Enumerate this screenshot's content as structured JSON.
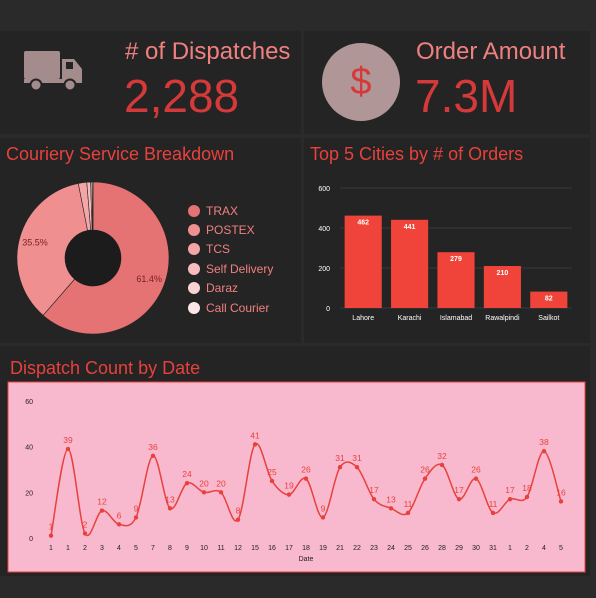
{
  "kpis": {
    "dispatches": {
      "title": "# of Dispatches",
      "value": "2,288",
      "icon": "truck-icon"
    },
    "amount": {
      "title": "Order Amount",
      "value": "7.3M",
      "icon": "dollar-icon",
      "symbol": "$"
    }
  },
  "colors": {
    "accent": "#d6393a",
    "title": "#e8413c",
    "panel": "#242424",
    "background": "#2a2a2a",
    "bar": "#f0443a",
    "line": "#e8413c",
    "line_panel": "#f8b9cf"
  },
  "chart_data": [
    {
      "type": "pie",
      "title": "Couriery Service Breakdown",
      "donut": true,
      "labels": [
        "TRAX",
        "POSTEX",
        "TCS",
        "Self Delivery",
        "Daraz",
        "Call Courier"
      ],
      "values": [
        61.4,
        35.5,
        1.8,
        0.8,
        0.3,
        0.2
      ],
      "colors": [
        "#e57373",
        "#ef8f8f",
        "#f4a6a6",
        "#f7bcbc",
        "#fad2d2",
        "#fde6e6"
      ],
      "slice_labels": [
        "61.4%",
        "35.5%",
        "",
        "",
        "",
        ""
      ],
      "legend_position": "right"
    },
    {
      "type": "bar",
      "title": "Top 5 Cities by # of Orders",
      "categories": [
        "Lahore",
        "Karachi",
        "Islamabad",
        "Rawalpindi",
        "Sailkot"
      ],
      "values": [
        462,
        441,
        279,
        210,
        82
      ],
      "ylim": [
        0,
        600
      ],
      "yticks": [
        "0",
        "200",
        "400",
        "600"
      ],
      "grid": true
    },
    {
      "type": "line",
      "title": "Dispatch Count by Date",
      "xlabel": "Date",
      "ylabel": "",
      "x": [
        "1",
        "1",
        "2",
        "3",
        "4",
        "5",
        "7",
        "8",
        "9",
        "10",
        "11",
        "12",
        "15",
        "16",
        "17",
        "18",
        "19",
        "21",
        "22",
        "23",
        "24",
        "25",
        "26",
        "28",
        "29",
        "30",
        "31",
        "1",
        "2",
        "4",
        "5"
      ],
      "values": [
        1,
        39,
        2,
        12,
        6,
        9,
        36,
        13,
        24,
        20,
        20,
        8,
        41,
        25,
        19,
        26,
        9,
        31,
        31,
        17,
        13,
        11,
        26,
        32,
        17,
        26,
        11,
        17,
        18,
        38,
        16
      ],
      "ylim": [
        0,
        60
      ],
      "yticks": [
        "0",
        "20",
        "40",
        "60"
      ],
      "smooth": true,
      "markers": true,
      "data_labels": true
    }
  ]
}
